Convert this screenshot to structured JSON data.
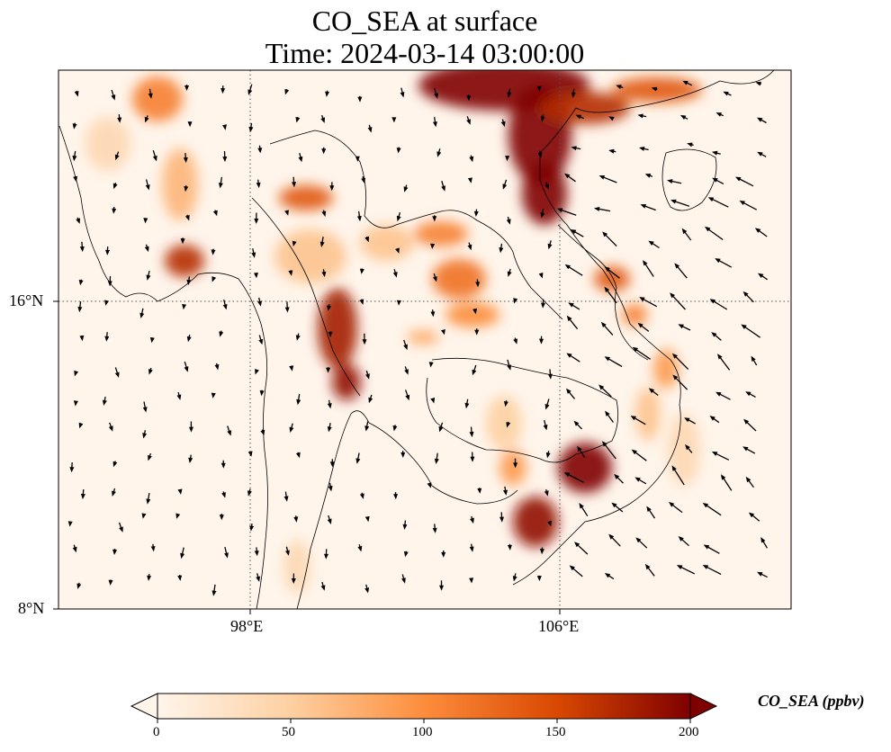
{
  "title_line1": "CO_SEA at surface",
  "title_line2": "Time: 2024-03-14 03:00:00",
  "axes": {
    "lon_ticks": [
      "98°E",
      "106°E"
    ],
    "lat_ticks": [
      "16°N",
      "8°N"
    ]
  },
  "colorbar": {
    "label": "CO_SEA (ppbv)",
    "ticks": [
      "0",
      "50",
      "100",
      "150",
      "200"
    ],
    "range": [
      0,
      200
    ],
    "extend": "both",
    "colormap": [
      "#fff5eb",
      "#fdd0a2",
      "#fd8d3c",
      "#d94801",
      "#7f0000"
    ]
  },
  "colors": {
    "background": "#fff5eb",
    "coast": "#000000",
    "grid": "#555555",
    "arrows": "#000000"
  }
}
